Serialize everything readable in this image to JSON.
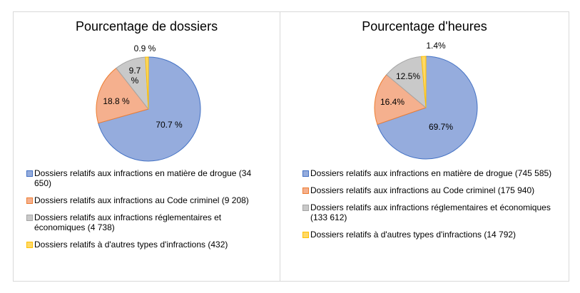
{
  "chart_data": [
    {
      "type": "pie",
      "title": "Pourcentage de dossiers",
      "categories": [
        "Dossiers relatifs aux infractions en matière de drogue",
        "Dossiers relatifs aux infractions au Code criminel",
        "Dossiers relatifs aux infractions réglementaires et économiques",
        "Dossiers relatifs à d'autres types d'infractions"
      ],
      "values": [
        70.7,
        18.8,
        9.7,
        0.9
      ],
      "counts": [
        "34 650",
        "9 208",
        "4 738",
        "432"
      ],
      "data_labels": [
        "70.7 %",
        "18.8 %",
        "9.7 %",
        "0.9 %"
      ],
      "legend_labels": [
        "Dossiers relatifs aux infractions en matière de drogue (34 650)",
        "Dossiers relatifs aux infractions au Code criminel (9 208)",
        "Dossiers relatifs aux infractions réglementaires et économiques (4 738)",
        "Dossiers relatifs à d'autres types d'infractions (432)"
      ],
      "legend": "bottom"
    },
    {
      "type": "pie",
      "title": "Pourcentage d'heures",
      "categories": [
        "Dossiers relatifs aux infractions en matière de drogue",
        "Dossiers relatifs aux infractions au Code criminel",
        "Dossiers relatifs aux infractions réglementaires et économiques",
        "Dossiers relatifs à d'autres types d'infractions"
      ],
      "values": [
        69.7,
        16.4,
        12.5,
        1.4
      ],
      "counts": [
        "745 585",
        "175 940",
        "133 612",
        "14 792"
      ],
      "data_labels": [
        "69.7%",
        "16.4%",
        "12.5%",
        "1.4%"
      ],
      "legend_labels": [
        "Dossiers relatifs aux infractions en matière de drogue (745 585)",
        "Dossiers relatifs aux infractions au Code criminel (175 940)",
        "Dossiers relatifs aux infractions réglementaires et économiques (133 612)",
        "Dossiers relatifs à d'autres types d'infractions (14 792)"
      ],
      "legend": "bottom"
    }
  ],
  "colors": {
    "fill": [
      "#95acdd",
      "#f5b08e",
      "#c9c9c9",
      "#ffd966"
    ],
    "stroke": [
      "#4472c4",
      "#ed7d31",
      "#a5a5a5",
      "#ffc000"
    ]
  }
}
